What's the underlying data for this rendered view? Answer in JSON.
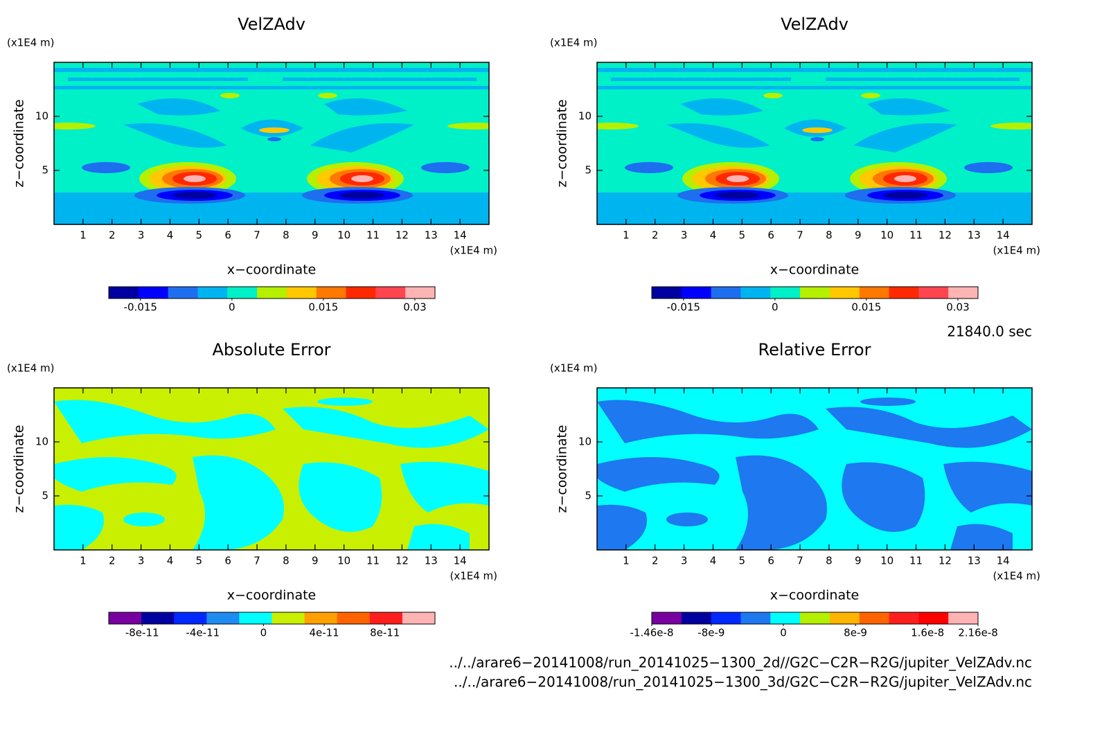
{
  "chart_data": [
    {
      "type": "contour",
      "title": "VelZAdv",
      "xlabel": "x−coordinate",
      "ylabel": "z−coordinate",
      "x_unit": "(x1E4 m)",
      "y_unit": "(x1E4 m)",
      "xlim": [
        0,
        15
      ],
      "ylim": [
        0,
        15
      ],
      "xticks": [
        1,
        2,
        3,
        4,
        5,
        6,
        7,
        8,
        9,
        10,
        11,
        12,
        13,
        14
      ],
      "yticks": [
        5,
        10
      ],
      "colorbar": {
        "colors": [
          "#0000a0",
          "#0000ff",
          "#1e6ef0",
          "#00b4f0",
          "#00f0c8",
          "#b4f000",
          "#ffc800",
          "#ff7800",
          "#ff2800",
          "#ff4650",
          "#ffb4b4"
        ],
        "lim": [
          -0.0202,
          0.0333
        ],
        "ticks": [
          -0.015,
          0,
          0.015,
          0.03
        ]
      }
    },
    {
      "type": "contour",
      "title": "VelZAdv",
      "xlabel": "x−coordinate",
      "ylabel": "z−coordinate",
      "x_unit": "(x1E4 m)",
      "y_unit": "(x1E4 m)",
      "xlim": [
        0,
        15
      ],
      "ylim": [
        0,
        15
      ],
      "xticks": [
        1,
        2,
        3,
        4,
        5,
        6,
        7,
        8,
        9,
        10,
        11,
        12,
        13,
        14
      ],
      "yticks": [
        5,
        10
      ],
      "colorbar": {
        "colors": [
          "#0000a0",
          "#0000ff",
          "#1e6ef0",
          "#00b4f0",
          "#00f0c8",
          "#b4f000",
          "#ffc800",
          "#ff7800",
          "#ff2800",
          "#ff4650",
          "#ffb4b4"
        ],
        "lim": [
          -0.0202,
          0.0333
        ],
        "ticks": [
          -0.015,
          0,
          0.015,
          0.03
        ]
      }
    },
    {
      "type": "contour",
      "title": "Absolute Error",
      "xlabel": "x−coordinate",
      "ylabel": "z−coordinate",
      "x_unit": "(x1E4 m)",
      "y_unit": "(x1E4 m)",
      "xlim": [
        0,
        15
      ],
      "ylim": [
        0,
        15
      ],
      "xticks": [
        1,
        2,
        3,
        4,
        5,
        6,
        7,
        8,
        9,
        10,
        11,
        12,
        13,
        14
      ],
      "yticks": [
        5,
        10
      ],
      "colorbar": {
        "colors": [
          "#7800a0",
          "#0000a0",
          "#0028ff",
          "#1e8cf0",
          "#00ffff",
          "#c8f000",
          "#ffa000",
          "#ff6400",
          "#ff1e1e",
          "#ffb4b4"
        ],
        "lim": [
          -1.02e-10,
          1.13e-10
        ],
        "ticks": [
          -8e-11,
          -4e-11,
          0,
          4e-11,
          8e-11
        ]
      }
    },
    {
      "type": "contour",
      "title": "Relative Error",
      "xlabel": "x−coordinate",
      "ylabel": "z−coordinate",
      "x_unit": "(x1E4 m)",
      "y_unit": "(x1E4 m)",
      "xlim": [
        0,
        15
      ],
      "ylim": [
        0,
        15
      ],
      "xticks": [
        1,
        2,
        3,
        4,
        5,
        6,
        7,
        8,
        9,
        10,
        11,
        12,
        13,
        14
      ],
      "yticks": [
        5,
        10
      ],
      "colorbar": {
        "colors": [
          "#7800a0",
          "#0000a0",
          "#0028ff",
          "#1e78f0",
          "#00ffff",
          "#b4f000",
          "#ffb400",
          "#ff6400",
          "#ff1e1e",
          "#ff0000",
          "#ffb4b4"
        ],
        "lim": [
          -1.46e-08,
          2.16e-08
        ],
        "ticks": [
          -1.46e-08,
          -8e-09,
          0,
          8e-09,
          1.6e-08,
          2.16e-08
        ]
      }
    }
  ],
  "footer": {
    "time": "21840.0 sec",
    "files": [
      "../../arare6−20141008/run_20141025−1300_2d//G2C−C2R−R2G/jupiter_VelZAdv.nc",
      "../../arare6−20141008/run_20141025−1300_3d/G2C−C2R−R2G/jupiter_VelZAdv.nc"
    ]
  }
}
